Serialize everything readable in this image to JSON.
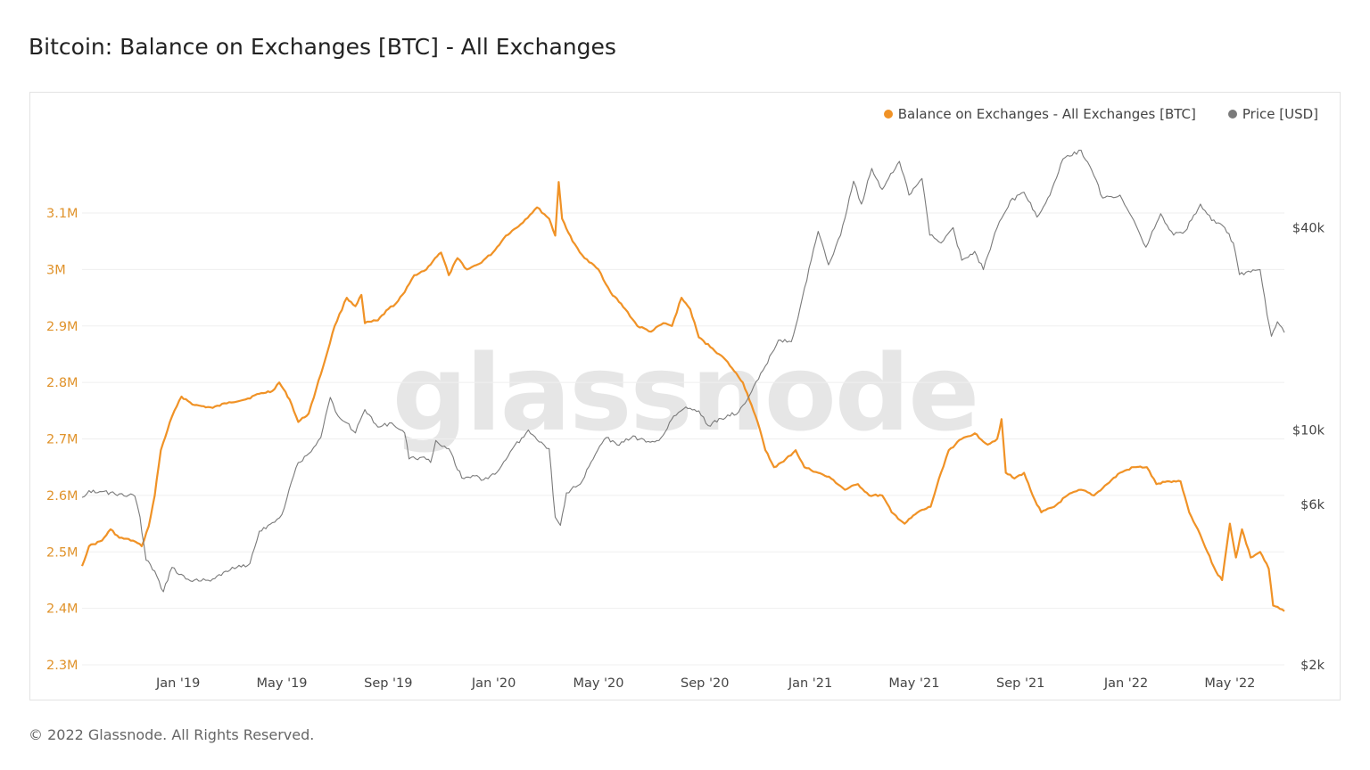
{
  "title": "Bitcoin: Balance on Exchanges [BTC] - All Exchanges",
  "footer": "© 2022 Glassnode. All Rights Reserved.",
  "watermark": "glassnode",
  "colors": {
    "balance": "#f09226",
    "price": "#7a7a7a",
    "left_axis": "#e0932c",
    "right_axis": "#444444",
    "grid": "#efefef"
  },
  "chart_data": {
    "type": "line",
    "x_ticks": [
      "Jan '19",
      "May '19",
      "Sep '19",
      "Jan '20",
      "May '20",
      "Sep '20",
      "Jan '21",
      "May '21",
      "Sep '21",
      "Jan '22",
      "May '22"
    ],
    "x_range": [
      "2018-09-12",
      "2022-07-03"
    ],
    "y_left": {
      "label": "Balance on Exchanges - All Exchanges [BTC]",
      "ticks": [
        {
          "v": 2300000,
          "t": "2.3M"
        },
        {
          "v": 2400000,
          "t": "2.4M"
        },
        {
          "v": 2500000,
          "t": "2.5M"
        },
        {
          "v": 2600000,
          "t": "2.6M"
        },
        {
          "v": 2700000,
          "t": "2.7M"
        },
        {
          "v": 2800000,
          "t": "2.8M"
        },
        {
          "v": 2900000,
          "t": "2.9M"
        },
        {
          "v": 3000000,
          "t": "3M"
        },
        {
          "v": 3100000,
          "t": "3.1M"
        }
      ],
      "range": [
        2300000,
        3250000
      ]
    },
    "y_right": {
      "label": "Price [USD]",
      "scale": "log",
      "ticks": [
        {
          "v": 2000,
          "t": "$2k"
        },
        {
          "v": 6000,
          "t": "$6k"
        },
        {
          "v": 10000,
          "t": "$10k"
        },
        {
          "v": 40000,
          "t": "$40k"
        }
      ],
      "range": [
        2000,
        79000
      ]
    },
    "legend": [
      {
        "name": "Balance on Exchanges - All Exchanges [BTC]",
        "color": "#f09226"
      },
      {
        "name": "Price [USD]",
        "color": "#7a7a7a"
      }
    ],
    "series": [
      {
        "name": "Balance on Exchanges - All Exchanges [BTC]",
        "axis": "left",
        "points": [
          [
            "2018-09-12",
            2475000
          ],
          [
            "2018-09-20",
            2510000
          ],
          [
            "2018-10-05",
            2520000
          ],
          [
            "2018-10-15",
            2540000
          ],
          [
            "2018-10-25",
            2525000
          ],
          [
            "2018-11-10",
            2520000
          ],
          [
            "2018-11-20",
            2510000
          ],
          [
            "2018-11-28",
            2545000
          ],
          [
            "2018-12-05",
            2600000
          ],
          [
            "2018-12-12",
            2680000
          ],
          [
            "2018-12-25",
            2740000
          ],
          [
            "2019-01-05",
            2775000
          ],
          [
            "2019-01-20",
            2760000
          ],
          [
            "2019-02-10",
            2755000
          ],
          [
            "2019-03-01",
            2765000
          ],
          [
            "2019-03-20",
            2770000
          ],
          [
            "2019-04-05",
            2780000
          ],
          [
            "2019-04-20",
            2785000
          ],
          [
            "2019-04-28",
            2800000
          ],
          [
            "2019-05-10",
            2770000
          ],
          [
            "2019-05-20",
            2730000
          ],
          [
            "2019-06-01",
            2745000
          ],
          [
            "2019-06-10",
            2790000
          ],
          [
            "2019-06-20",
            2840000
          ],
          [
            "2019-07-01",
            2900000
          ],
          [
            "2019-07-15",
            2950000
          ],
          [
            "2019-07-25",
            2935000
          ],
          [
            "2019-08-01",
            2955000
          ],
          [
            "2019-08-05",
            2905000
          ],
          [
            "2019-08-20",
            2910000
          ],
          [
            "2019-09-01",
            2930000
          ],
          [
            "2019-09-10",
            2940000
          ],
          [
            "2019-09-20",
            2960000
          ],
          [
            "2019-10-01",
            2990000
          ],
          [
            "2019-10-15",
            3000000
          ],
          [
            "2019-10-25",
            3020000
          ],
          [
            "2019-11-01",
            3030000
          ],
          [
            "2019-11-10",
            2990000
          ],
          [
            "2019-11-20",
            3020000
          ],
          [
            "2019-12-01",
            3000000
          ],
          [
            "2019-12-15",
            3010000
          ],
          [
            "2019-12-31",
            3030000
          ],
          [
            "2020-01-15",
            3060000
          ],
          [
            "2020-02-01",
            3080000
          ],
          [
            "2020-02-20",
            3110000
          ],
          [
            "2020-03-05",
            3090000
          ],
          [
            "2020-03-12",
            3060000
          ],
          [
            "2020-03-16",
            3155000
          ],
          [
            "2020-03-20",
            3090000
          ],
          [
            "2020-04-01",
            3050000
          ],
          [
            "2020-04-15",
            3020000
          ],
          [
            "2020-05-01",
            3000000
          ],
          [
            "2020-05-15",
            2960000
          ],
          [
            "2020-06-01",
            2930000
          ],
          [
            "2020-06-15",
            2900000
          ],
          [
            "2020-07-01",
            2890000
          ],
          [
            "2020-07-15",
            2905000
          ],
          [
            "2020-07-25",
            2900000
          ],
          [
            "2020-08-05",
            2950000
          ],
          [
            "2020-08-15",
            2930000
          ],
          [
            "2020-08-25",
            2880000
          ],
          [
            "2020-09-10",
            2860000
          ],
          [
            "2020-09-25",
            2840000
          ],
          [
            "2020-10-05",
            2820000
          ],
          [
            "2020-10-15",
            2800000
          ],
          [
            "2020-10-25",
            2760000
          ],
          [
            "2020-11-01",
            2730000
          ],
          [
            "2020-11-10",
            2680000
          ],
          [
            "2020-11-20",
            2650000
          ],
          [
            "2020-12-01",
            2660000
          ],
          [
            "2020-12-15",
            2680000
          ],
          [
            "2020-12-25",
            2650000
          ],
          [
            "2021-01-10",
            2640000
          ],
          [
            "2021-01-25",
            2630000
          ],
          [
            "2021-02-10",
            2610000
          ],
          [
            "2021-02-25",
            2620000
          ],
          [
            "2021-03-10",
            2600000
          ],
          [
            "2021-03-25",
            2600000
          ],
          [
            "2021-04-05",
            2570000
          ],
          [
            "2021-04-20",
            2550000
          ],
          [
            "2021-05-05",
            2570000
          ],
          [
            "2021-05-20",
            2580000
          ],
          [
            "2021-06-01",
            2640000
          ],
          [
            "2021-06-10",
            2680000
          ],
          [
            "2021-06-25",
            2700000
          ],
          [
            "2021-07-10",
            2710000
          ],
          [
            "2021-07-25",
            2690000
          ],
          [
            "2021-08-05",
            2700000
          ],
          [
            "2021-08-10",
            2735000
          ],
          [
            "2021-08-15",
            2640000
          ],
          [
            "2021-08-25",
            2630000
          ],
          [
            "2021-09-05",
            2640000
          ],
          [
            "2021-09-15",
            2600000
          ],
          [
            "2021-09-25",
            2570000
          ],
          [
            "2021-10-10",
            2580000
          ],
          [
            "2021-10-25",
            2600000
          ],
          [
            "2021-11-10",
            2610000
          ],
          [
            "2021-11-25",
            2600000
          ],
          [
            "2021-12-10",
            2620000
          ],
          [
            "2021-12-25",
            2640000
          ],
          [
            "2022-01-10",
            2650000
          ],
          [
            "2022-01-25",
            2650000
          ],
          [
            "2022-02-05",
            2620000
          ],
          [
            "2022-02-20",
            2625000
          ],
          [
            "2022-03-05",
            2625000
          ],
          [
            "2022-03-15",
            2570000
          ],
          [
            "2022-03-25",
            2540000
          ],
          [
            "2022-04-05",
            2500000
          ],
          [
            "2022-04-15",
            2465000
          ],
          [
            "2022-04-22",
            2450000
          ],
          [
            "2022-05-01",
            2550000
          ],
          [
            "2022-05-08",
            2490000
          ],
          [
            "2022-05-15",
            2540000
          ],
          [
            "2022-05-25",
            2490000
          ],
          [
            "2022-06-05",
            2500000
          ],
          [
            "2022-06-15",
            2470000
          ],
          [
            "2022-06-20",
            2405000
          ],
          [
            "2022-07-03",
            2395000
          ]
        ]
      },
      {
        "name": "Price [USD]",
        "axis": "right",
        "points": [
          [
            "2018-09-12",
            6300
          ],
          [
            "2018-09-20",
            6600
          ],
          [
            "2018-10-05",
            6550
          ],
          [
            "2018-10-20",
            6450
          ],
          [
            "2018-11-05",
            6400
          ],
          [
            "2018-11-12",
            6350
          ],
          [
            "2018-11-18",
            5500
          ],
          [
            "2018-11-25",
            4100
          ],
          [
            "2018-12-05",
            3800
          ],
          [
            "2018-12-15",
            3300
          ],
          [
            "2018-12-25",
            3900
          ],
          [
            "2019-01-10",
            3600
          ],
          [
            "2019-01-25",
            3550
          ],
          [
            "2019-02-10",
            3600
          ],
          [
            "2019-02-25",
            3800
          ],
          [
            "2019-03-10",
            3900
          ],
          [
            "2019-03-25",
            4000
          ],
          [
            "2019-04-05",
            5000
          ],
          [
            "2019-04-20",
            5300
          ],
          [
            "2019-05-01",
            5600
          ],
          [
            "2019-05-12",
            7000
          ],
          [
            "2019-05-20",
            8000
          ],
          [
            "2019-06-01",
            8500
          ],
          [
            "2019-06-15",
            9500
          ],
          [
            "2019-06-26",
            12500
          ],
          [
            "2019-07-05",
            11000
          ],
          [
            "2019-07-15",
            10500
          ],
          [
            "2019-07-25",
            9800
          ],
          [
            "2019-08-05",
            11500
          ],
          [
            "2019-08-20",
            10200
          ],
          [
            "2019-09-05",
            10500
          ],
          [
            "2019-09-20",
            9800
          ],
          [
            "2019-09-25",
            8200
          ],
          [
            "2019-10-10",
            8300
          ],
          [
            "2019-10-20",
            8000
          ],
          [
            "2019-10-26",
            9300
          ],
          [
            "2019-11-10",
            8800
          ],
          [
            "2019-11-25",
            7200
          ],
          [
            "2019-12-10",
            7300
          ],
          [
            "2019-12-20",
            7100
          ],
          [
            "2020-01-05",
            7500
          ],
          [
            "2020-01-20",
            8600
          ],
          [
            "2020-02-10",
            10000
          ],
          [
            "2020-02-25",
            9200
          ],
          [
            "2020-03-05",
            8800
          ],
          [
            "2020-03-12",
            5500
          ],
          [
            "2020-03-18",
            5200
          ],
          [
            "2020-03-25",
            6500
          ],
          [
            "2020-04-10",
            6900
          ],
          [
            "2020-04-30",
            8700
          ],
          [
            "2020-05-10",
            9500
          ],
          [
            "2020-05-25",
            9000
          ],
          [
            "2020-06-10",
            9600
          ],
          [
            "2020-06-25",
            9200
          ],
          [
            "2020-07-10",
            9300
          ],
          [
            "2020-07-27",
            11000
          ],
          [
            "2020-08-10",
            11700
          ],
          [
            "2020-08-25",
            11400
          ],
          [
            "2020-09-05",
            10300
          ],
          [
            "2020-09-20",
            10800
          ],
          [
            "2020-10-10",
            11300
          ],
          [
            "2020-10-25",
            13000
          ],
          [
            "2020-11-10",
            15500
          ],
          [
            "2020-11-25",
            18500
          ],
          [
            "2020-12-10",
            18300
          ],
          [
            "2020-12-20",
            23000
          ],
          [
            "2021-01-02",
            32000
          ],
          [
            "2021-01-10",
            39000
          ],
          [
            "2021-01-22",
            31000
          ],
          [
            "2021-02-05",
            38000
          ],
          [
            "2021-02-20",
            55000
          ],
          [
            "2021-03-01",
            47000
          ],
          [
            "2021-03-13",
            60000
          ],
          [
            "2021-03-25",
            52000
          ],
          [
            "2021-04-14",
            63000
          ],
          [
            "2021-04-25",
            50000
          ],
          [
            "2021-05-10",
            56000
          ],
          [
            "2021-05-19",
            38000
          ],
          [
            "2021-06-01",
            36000
          ],
          [
            "2021-06-15",
            40000
          ],
          [
            "2021-06-25",
            32000
          ],
          [
            "2021-07-10",
            34000
          ],
          [
            "2021-07-20",
            30000
          ],
          [
            "2021-08-05",
            40000
          ],
          [
            "2021-08-20",
            48000
          ],
          [
            "2021-09-05",
            51000
          ],
          [
            "2021-09-20",
            43000
          ],
          [
            "2021-10-05",
            50000
          ],
          [
            "2021-10-20",
            64000
          ],
          [
            "2021-11-10",
            68000
          ],
          [
            "2021-11-25",
            57000
          ],
          [
            "2021-12-05",
            49000
          ],
          [
            "2021-12-25",
            50000
          ],
          [
            "2022-01-10",
            42000
          ],
          [
            "2022-01-24",
            35000
          ],
          [
            "2022-02-10",
            44000
          ],
          [
            "2022-02-25",
            38000
          ],
          [
            "2022-03-10",
            39000
          ],
          [
            "2022-03-28",
            47000
          ],
          [
            "2022-04-10",
            42000
          ],
          [
            "2022-04-25",
            40000
          ],
          [
            "2022-05-05",
            36000
          ],
          [
            "2022-05-12",
            29000
          ],
          [
            "2022-05-25",
            29500
          ],
          [
            "2022-06-05",
            30000
          ],
          [
            "2022-06-13",
            22000
          ],
          [
            "2022-06-18",
            19000
          ],
          [
            "2022-06-25",
            21000
          ],
          [
            "2022-07-03",
            19500
          ]
        ]
      }
    ]
  }
}
